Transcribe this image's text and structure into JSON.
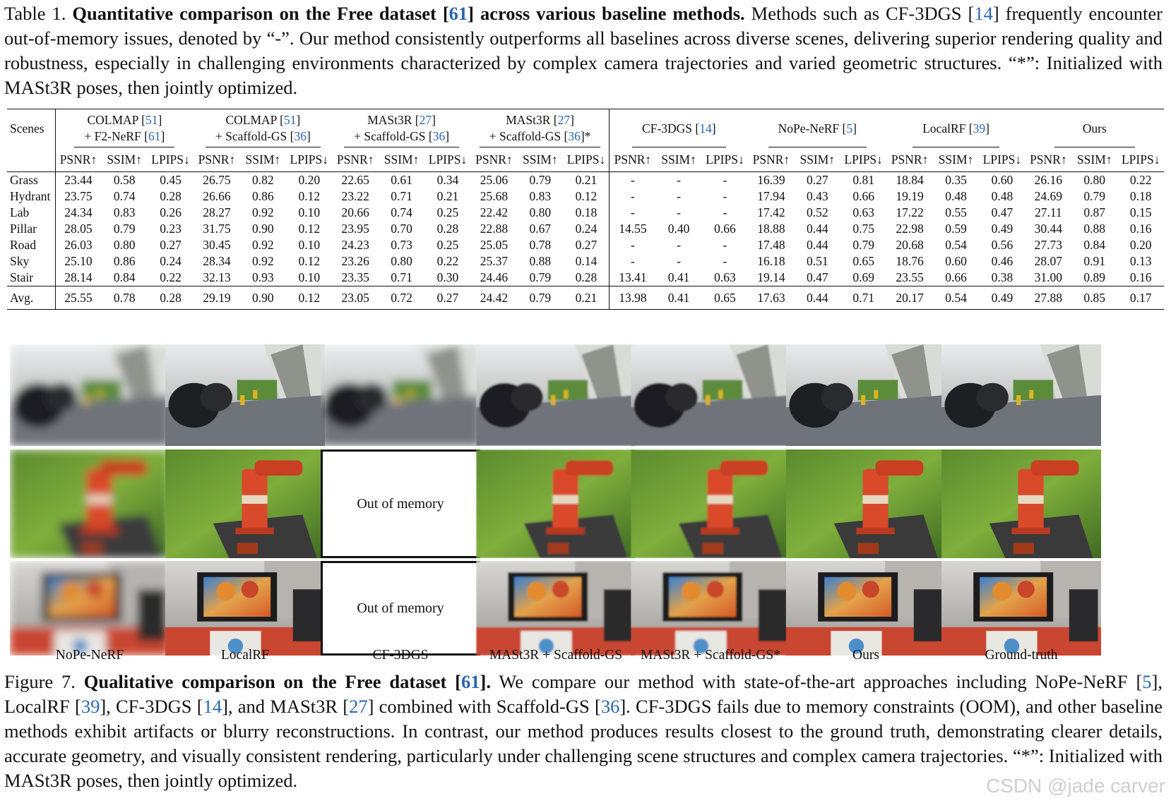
{
  "table_caption": {
    "label": "Table 1.",
    "title_pre": "Quantitative comparison on the Free dataset [",
    "title_ref": "61",
    "title_post": "] across various baseline methods.",
    "t1": " Methods such as CF-3DGS [",
    "r1": "14",
    "t2": "] frequently encounter out-of-memory issues, denoted by “-”. Our method consistently outperforms all baselines across diverse scenes, delivering superior rendering quality and robustness, especially in challenging environments characterized by complex camera trajectories and varied geometric structures. “*”: Initialized with MASt3R poses, then jointly optimized."
  },
  "table": {
    "scenes_header": "Scenes",
    "groups": [
      {
        "line1": "COLMAP [",
        "ref1": "51",
        "line1_end": "]",
        "line2": "+ F2-NeRF [",
        "ref2": "61",
        "line2_end": "]"
      },
      {
        "line1": "COLMAP [",
        "ref1": "51",
        "line1_end": "]",
        "line2": "+ Scaffold-GS [",
        "ref2": "36",
        "line2_end": "]"
      },
      {
        "line1": "MASt3R [",
        "ref1": "27",
        "line1_end": "]",
        "line2": "+ Scaffold-GS [",
        "ref2": "36",
        "line2_end": "]"
      },
      {
        "line1": "MASt3R [",
        "ref1": "27",
        "line1_end": "]",
        "line2": "+ Scaffold-GS [",
        "ref2": "36",
        "line2_end": "]*"
      },
      {
        "name": "CF-3DGS [",
        "ref": "14",
        "name_end": "]"
      },
      {
        "name": "NoPe-NeRF [",
        "ref": "5",
        "name_end": "]"
      },
      {
        "name": "LocalRF [",
        "ref": "39",
        "name_end": "]"
      },
      {
        "name": "Ours"
      }
    ],
    "metrics": [
      "PSNR↑",
      "SSIM↑",
      "LPIPS↓"
    ],
    "rows": [
      {
        "scene": "Grass",
        "v": [
          "23.44",
          "0.58",
          "0.45",
          "26.75",
          "0.82",
          "0.20",
          "22.65",
          "0.61",
          "0.34",
          "25.06",
          "0.79",
          "0.21",
          "-",
          "-",
          "-",
          "16.39",
          "0.27",
          "0.81",
          "18.84",
          "0.35",
          "0.60",
          "26.16",
          "0.80",
          "0.22"
        ]
      },
      {
        "scene": "Hydrant",
        "v": [
          "23.75",
          "0.74",
          "0.28",
          "26.66",
          "0.86",
          "0.12",
          "23.22",
          "0.71",
          "0.21",
          "25.68",
          "0.83",
          "0.12",
          "-",
          "-",
          "-",
          "17.94",
          "0.43",
          "0.66",
          "19.19",
          "0.48",
          "0.48",
          "24.69",
          "0.79",
          "0.18"
        ]
      },
      {
        "scene": "Lab",
        "v": [
          "24.34",
          "0.83",
          "0.26",
          "28.27",
          "0.92",
          "0.10",
          "20.66",
          "0.74",
          "0.25",
          "22.42",
          "0.80",
          "0.18",
          "-",
          "-",
          "-",
          "17.42",
          "0.52",
          "0.63",
          "17.22",
          "0.55",
          "0.47",
          "27.11",
          "0.87",
          "0.15"
        ]
      },
      {
        "scene": "Pillar",
        "v": [
          "28.05",
          "0.79",
          "0.23",
          "31.75",
          "0.90",
          "0.12",
          "23.95",
          "0.70",
          "0.28",
          "22.88",
          "0.67",
          "0.24",
          "14.55",
          "0.40",
          "0.66",
          "18.88",
          "0.44",
          "0.75",
          "22.98",
          "0.59",
          "0.49",
          "30.44",
          "0.88",
          "0.16"
        ]
      },
      {
        "scene": "Road",
        "v": [
          "26.03",
          "0.80",
          "0.27",
          "30.45",
          "0.92",
          "0.10",
          "24.23",
          "0.73",
          "0.25",
          "25.05",
          "0.78",
          "0.27",
          "-",
          "-",
          "-",
          "17.48",
          "0.44",
          "0.79",
          "20.68",
          "0.54",
          "0.56",
          "27.73",
          "0.84",
          "0.20"
        ]
      },
      {
        "scene": "Sky",
        "v": [
          "25.10",
          "0.86",
          "0.24",
          "28.34",
          "0.92",
          "0.12",
          "23.26",
          "0.80",
          "0.22",
          "25.37",
          "0.88",
          "0.14",
          "-",
          "-",
          "-",
          "16.18",
          "0.51",
          "0.65",
          "18.76",
          "0.60",
          "0.46",
          "28.07",
          "0.91",
          "0.13"
        ]
      },
      {
        "scene": "Stair",
        "v": [
          "28.14",
          "0.84",
          "0.22",
          "32.13",
          "0.93",
          "0.10",
          "23.35",
          "0.71",
          "0.30",
          "24.46",
          "0.79",
          "0.28",
          "13.41",
          "0.41",
          "0.63",
          "19.14",
          "0.47",
          "0.69",
          "23.55",
          "0.66",
          "0.38",
          "31.00",
          "0.89",
          "0.16"
        ]
      }
    ],
    "avg": {
      "scene": "Avg.",
      "v": [
        "25.55",
        "0.78",
        "0.28",
        "29.19",
        "0.90",
        "0.12",
        "23.05",
        "0.72",
        "0.27",
        "24.42",
        "0.79",
        "0.21",
        "13.98",
        "0.41",
        "0.65",
        "17.63",
        "0.44",
        "0.71",
        "20.17",
        "0.54",
        "0.49",
        "27.88",
        "0.85",
        "0.17"
      ]
    }
  },
  "figure": {
    "oom_text": "Out of memory",
    "column_labels": [
      "NoPe-NeRF",
      "LocalRF",
      "CF-3DGS",
      "MASt3R + Scaffold-GS",
      "MASt3R + Scaffold-GS*",
      "Ours",
      "Ground-truth"
    ]
  },
  "figure_caption": {
    "label": "Figure 7.",
    "title_pre": " Qualitative comparison on the Free dataset [",
    "title_ref": "61",
    "title_post": "].",
    "t1": " We compare our method with state-of-the-art approaches including NoPe-NeRF [",
    "r1": "5",
    "t2": "], LocalRF [",
    "r2": "39",
    "t3": "], CF-3DGS [",
    "r3": "14",
    "t4": "], and MASt3R [",
    "r4": "27",
    "t5": "] combined with Scaffold-GS [",
    "r5": "36",
    "t6": "]. CF-3DGS fails due to memory constraints (OOM), and other baseline methods exhibit artifacts or blurry reconstructions. In contrast, our method produces results closest to the ground truth, demonstrating clearer details, accurate geometry, and visually consistent rendering, particularly under challenging scene structures and complex camera trajectories. “*”: Initialized with MASt3R poses, then jointly optimized."
  },
  "watermark": "CSDN @jade carver"
}
